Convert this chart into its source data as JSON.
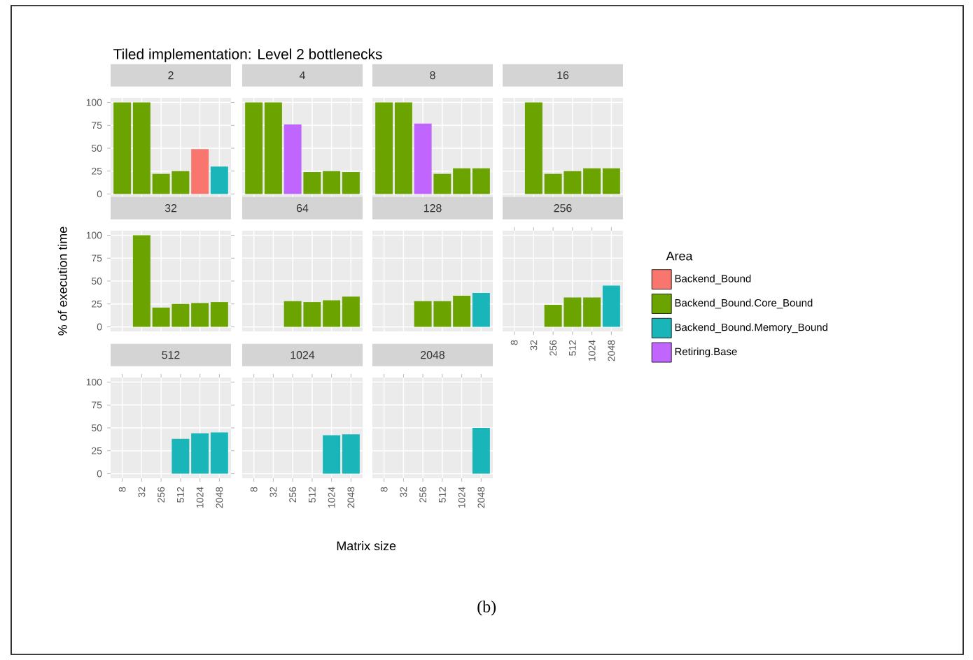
{
  "chart_data": [
    {
      "type": "bar",
      "title": "Tiled implementation: Level 2 bottlenecks",
      "subtitle": "2",
      "categories": [
        "8",
        "32",
        "256",
        "512",
        "1024",
        "2048"
      ],
      "stacked": true,
      "ylim": [
        -5,
        105
      ],
      "yticks": [
        0,
        25,
        50,
        75,
        100
      ],
      "grid": true,
      "tick_labels": "y",
      "series": [
        {
          "color": "#f8766d",
          "values": [
            null,
            null,
            null,
            null,
            49,
            null
          ]
        },
        {
          "color": "#6ba300",
          "values": [
            100,
            100,
            22,
            25,
            null,
            null
          ]
        },
        {
          "color": "#19b5b9",
          "values": [
            null,
            null,
            null,
            null,
            null,
            30
          ]
        }
      ]
    },
    {
      "type": "bar",
      "subtitle": "4",
      "categories": [
        "8",
        "32",
        "256",
        "512",
        "1024",
        "2048"
      ],
      "stacked": true,
      "ylim": [
        -5,
        105
      ],
      "yticks": [
        0,
        25,
        50,
        75,
        100
      ],
      "grid": true,
      "tick_labels": false,
      "series": [
        {
          "color": "#6ba300",
          "values": [
            100,
            100,
            null,
            24,
            25,
            24
          ]
        },
        {
          "color": "#c066ff",
          "values": [
            null,
            null,
            76,
            null,
            null,
            null
          ]
        }
      ]
    },
    {
      "type": "bar",
      "subtitle": "8",
      "categories": [
        "8",
        "32",
        "256",
        "512",
        "1024",
        "2048"
      ],
      "stacked": true,
      "ylim": [
        -5,
        105
      ],
      "yticks": [
        0,
        25,
        50,
        75,
        100
      ],
      "grid": true,
      "tick_labels": false,
      "series": [
        {
          "color": "#6ba300",
          "values": [
            100,
            100,
            null,
            22,
            28,
            28
          ]
        },
        {
          "color": "#c066ff",
          "values": [
            null,
            null,
            77,
            null,
            null,
            null
          ]
        }
      ]
    },
    {
      "type": "bar",
      "subtitle": "16",
      "categories": [
        "8",
        "32",
        "256",
        "512",
        "1024",
        "2048"
      ],
      "stacked": true,
      "ylim": [
        -5,
        105
      ],
      "yticks": [
        0,
        25,
        50,
        75,
        100
      ],
      "grid": true,
      "tick_labels": false,
      "series": [
        {
          "color": "#6ba300",
          "values": [
            null,
            100,
            22,
            25,
            28,
            28
          ]
        }
      ]
    },
    {
      "type": "bar",
      "subtitle": "32",
      "ylabel": "% of execution time",
      "categories": [
        "8",
        "32",
        "256",
        "512",
        "1024",
        "2048"
      ],
      "stacked": true,
      "ylim": [
        -5,
        105
      ],
      "yticks": [
        0,
        25,
        50,
        75,
        100
      ],
      "grid": true,
      "tick_labels": "y",
      "series": [
        {
          "color": "#6ba300",
          "values": [
            null,
            100,
            21,
            25,
            26,
            27
          ]
        }
      ]
    },
    {
      "type": "bar",
      "subtitle": "64",
      "categories": [
        "8",
        "32",
        "256",
        "512",
        "1024",
        "2048"
      ],
      "stacked": true,
      "ylim": [
        -5,
        105
      ],
      "yticks": [
        0,
        25,
        50,
        75,
        100
      ],
      "grid": true,
      "tick_labels": false,
      "series": [
        {
          "color": "#6ba300",
          "values": [
            null,
            null,
            28,
            27,
            29,
            33
          ]
        }
      ]
    },
    {
      "type": "bar",
      "subtitle": "128",
      "categories": [
        "8",
        "32",
        "256",
        "512",
        "1024",
        "2048"
      ],
      "stacked": true,
      "ylim": [
        -5,
        105
      ],
      "yticks": [
        0,
        25,
        50,
        75,
        100
      ],
      "grid": true,
      "tick_labels": false,
      "series": [
        {
          "color": "#6ba300",
          "values": [
            null,
            null,
            28,
            28,
            34,
            null
          ]
        },
        {
          "color": "#19b5b9",
          "values": [
            null,
            null,
            null,
            null,
            null,
            37
          ]
        }
      ]
    },
    {
      "type": "bar",
      "subtitle": "256",
      "categories": [
        "8",
        "32",
        "256",
        "512",
        "1024",
        "2048"
      ],
      "stacked": true,
      "ylim": [
        -5,
        105
      ],
      "yticks": [
        0,
        25,
        50,
        75,
        100
      ],
      "grid": true,
      "tick_labels": "x",
      "legend": "right",
      "legend_title": "Area",
      "series": [
        {
          "name": "Backend_Bound",
          "color": "#f8766d",
          "values": [
            null,
            null,
            null,
            null,
            null,
            null
          ]
        },
        {
          "name": "Backend_Bound.Core_Bound",
          "color": "#6ba300",
          "values": [
            null,
            null,
            24,
            32,
            32,
            null
          ]
        },
        {
          "name": "Backend_Bound.Memory_Bound",
          "color": "#19b5b9",
          "values": [
            null,
            null,
            null,
            null,
            null,
            45
          ]
        },
        {
          "name": "Retiring.Base",
          "color": "#c066ff",
          "values": [
            null,
            null,
            null,
            null,
            null,
            null
          ]
        }
      ]
    },
    {
      "type": "bar",
      "subtitle": "512",
      "categories": [
        "8",
        "32",
        "256",
        "512",
        "1024",
        "2048"
      ],
      "stacked": true,
      "ylim": [
        -5,
        105
      ],
      "yticks": [
        0,
        25,
        50,
        75,
        100
      ],
      "grid": true,
      "series": [
        {
          "color": "#19b5b9",
          "values": [
            null,
            null,
            null,
            38,
            44,
            45
          ]
        }
      ]
    },
    {
      "type": "bar",
      "subtitle": "1024",
      "xlabel": "Matrix size",
      "annotations": [
        "(b)"
      ],
      "categories": [
        "8",
        "32",
        "256",
        "512",
        "1024",
        "2048"
      ],
      "stacked": true,
      "ylim": [
        -5,
        105
      ],
      "yticks": [
        0,
        25,
        50,
        75,
        100
      ],
      "grid": true,
      "tick_labels": "x",
      "series": [
        {
          "color": "#19b5b9",
          "values": [
            null,
            null,
            null,
            null,
            42,
            43
          ]
        }
      ]
    },
    {
      "type": "bar",
      "subtitle": "2048",
      "categories": [
        "8",
        "32",
        "256",
        "512",
        "1024",
        "2048"
      ],
      "stacked": true,
      "ylim": [
        -5,
        105
      ],
      "yticks": [
        0,
        25,
        50,
        75,
        100
      ],
      "grid": true,
      "tick_labels": "x",
      "series": [
        {
          "color": "#19b5b9",
          "values": [
            null,
            null,
            null,
            null,
            null,
            50
          ]
        }
      ]
    }
  ]
}
